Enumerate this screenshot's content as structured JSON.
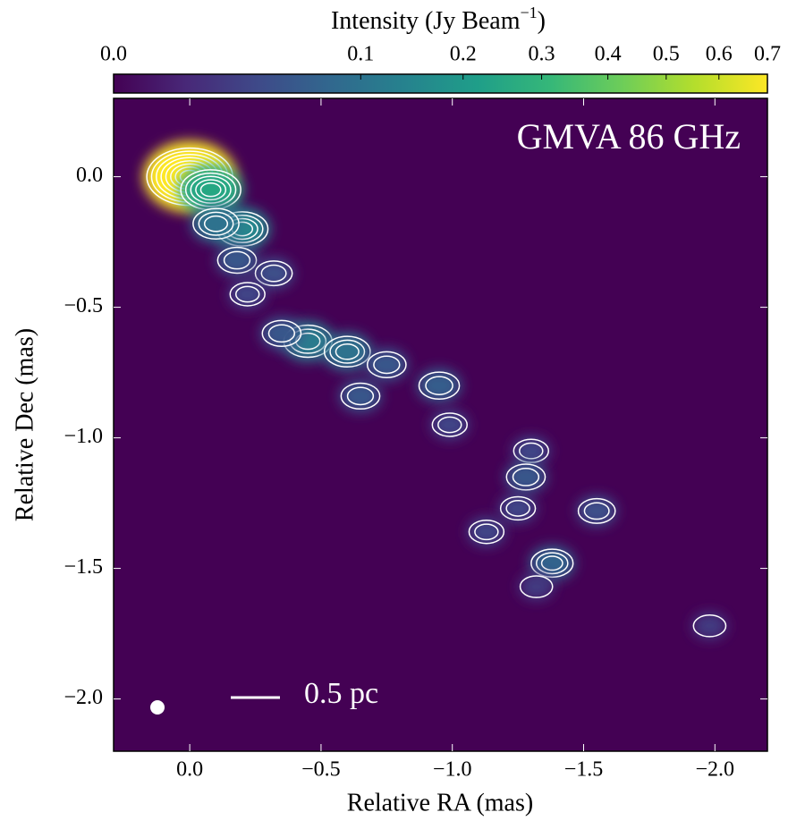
{
  "chart_data": {
    "type": "image",
    "title": "GMVA 86 GHz",
    "scale_bar_label": "0.5 pc",
    "x_label": "Relative RA (mas)",
    "y_label": "Relative Dec (mas)",
    "xlim": [
      0.29,
      -2.2
    ],
    "ylim": [
      -2.2,
      0.3
    ],
    "xticks": [
      {
        "value": 0,
        "label": "0.0"
      },
      {
        "value": -0.5,
        "label": "−0.5"
      },
      {
        "value": -1,
        "label": "−1.0"
      },
      {
        "value": -1.5,
        "label": "−1.5"
      },
      {
        "value": -2,
        "label": "−2.0"
      }
    ],
    "yticks": [
      {
        "value": 0,
        "label": "0.0"
      },
      {
        "value": -0.5,
        "label": "−0.5"
      },
      {
        "value": -1,
        "label": "−1.0"
      },
      {
        "value": -1.5,
        "label": "−1.5"
      },
      {
        "value": -2,
        "label": "−2.0"
      }
    ],
    "colorbar": {
      "label": "Intensity (Jy Beam",
      "label_superscript": "−1",
      "label_suffix": ")",
      "lim": [
        0,
        0.7
      ],
      "scale": "sqrt",
      "colormap": "viridis",
      "ticks": [
        {
          "value": 0,
          "label": "0.0"
        },
        0.1,
        0.2,
        0.3,
        0.4,
        0.5,
        0.6,
        0.7
      ]
    },
    "components": {
      "x": [
        0.0,
        -0.08,
        -0.2,
        -0.1,
        -0.18,
        -0.32,
        -0.22,
        -0.45,
        -0.6,
        -0.35,
        -0.75,
        -0.95,
        -0.65,
        -0.99,
        -1.3,
        -1.28,
        -1.25,
        -1.13,
        -1.38,
        -1.55,
        -1.32,
        -1.98
      ],
      "y": [
        0.0,
        -0.05,
        -0.2,
        -0.18,
        -0.32,
        -0.37,
        -0.45,
        -0.63,
        -0.67,
        -0.6,
        -0.72,
        -0.8,
        -0.84,
        -0.95,
        -1.05,
        -1.15,
        -1.27,
        -1.36,
        -1.48,
        -1.28,
        -1.57,
        -1.72
      ],
      "values": [
        0.7,
        0.25,
        0.15,
        0.1,
        0.05,
        0.04,
        0.03,
        0.12,
        0.1,
        0.05,
        0.05,
        0.06,
        0.05,
        0.03,
        0.03,
        0.05,
        0.03,
        0.03,
        0.07,
        0.04,
        0.02,
        0.02
      ]
    }
  }
}
